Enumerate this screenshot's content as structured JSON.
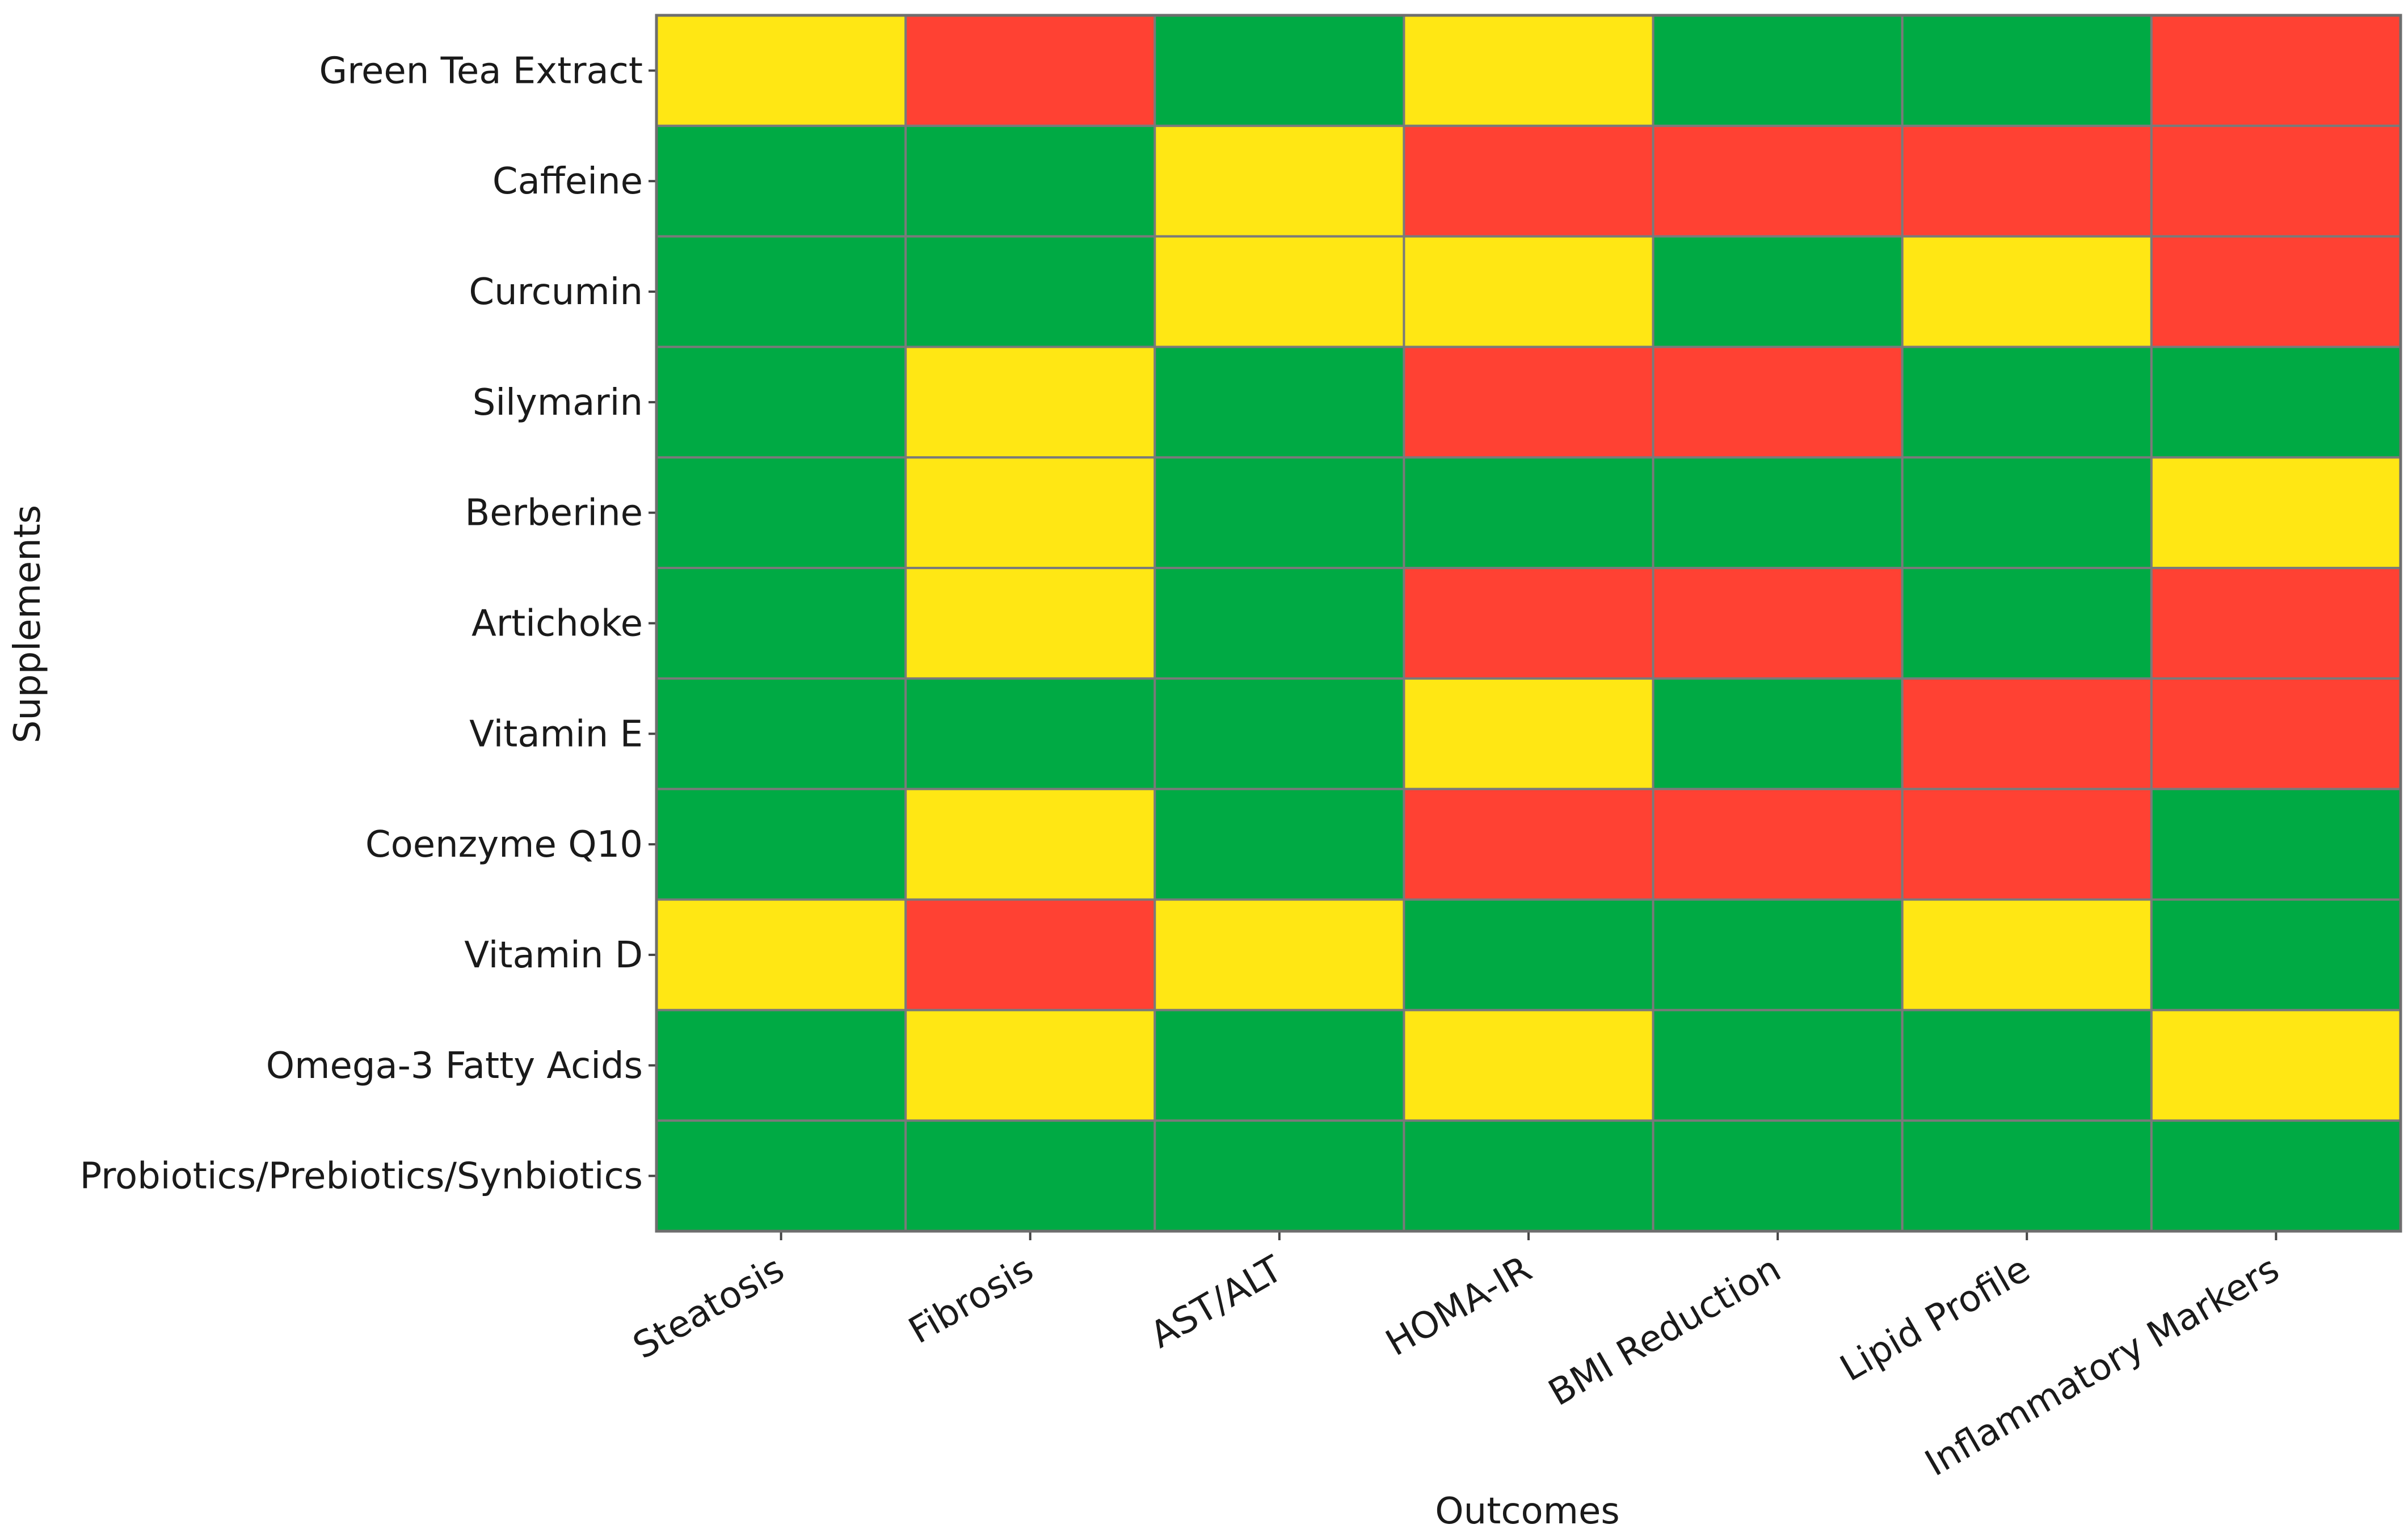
{
  "chart_data": {
    "type": "heatmap",
    "title": "",
    "xlabel": "Outcomes",
    "ylabel": "Supplements",
    "columns": [
      "Steatosis",
      "Fibrosis",
      "AST/ALT",
      "HOMA-IR",
      "BMI Reduction",
      "Lipid Profile",
      "Inflammatory Markers"
    ],
    "rows": [
      "Green Tea Extract",
      "Caffeine",
      "Curcumin",
      "Silymarin",
      "Berberine",
      "Artichoke",
      "Vitamin E",
      "Coenzyme Q10",
      "Vitamin D",
      "Omega-3 Fatty Acids",
      "Probiotics/Prebiotics/Synbiotics"
    ],
    "cell_levels": {
      "green": "#00aa44",
      "yellow": "#ffe714",
      "red": "#ff4133"
    },
    "values": [
      [
        "yellow",
        "red",
        "green",
        "yellow",
        "green",
        "green",
        "red"
      ],
      [
        "green",
        "green",
        "yellow",
        "red",
        "red",
        "red",
        "red"
      ],
      [
        "green",
        "green",
        "yellow",
        "yellow",
        "green",
        "yellow",
        "red"
      ],
      [
        "green",
        "yellow",
        "green",
        "red",
        "red",
        "green",
        "green"
      ],
      [
        "green",
        "yellow",
        "green",
        "green",
        "green",
        "green",
        "yellow"
      ],
      [
        "green",
        "yellow",
        "green",
        "red",
        "red",
        "green",
        "red"
      ],
      [
        "green",
        "green",
        "green",
        "yellow",
        "green",
        "red",
        "red"
      ],
      [
        "green",
        "yellow",
        "green",
        "red",
        "red",
        "red",
        "green"
      ],
      [
        "yellow",
        "red",
        "yellow",
        "green",
        "green",
        "yellow",
        "green"
      ],
      [
        "green",
        "yellow",
        "green",
        "yellow",
        "green",
        "green",
        "yellow"
      ],
      [
        "green",
        "green",
        "green",
        "green",
        "green",
        "green",
        "green"
      ]
    ],
    "grid": true,
    "legend": "none"
  }
}
